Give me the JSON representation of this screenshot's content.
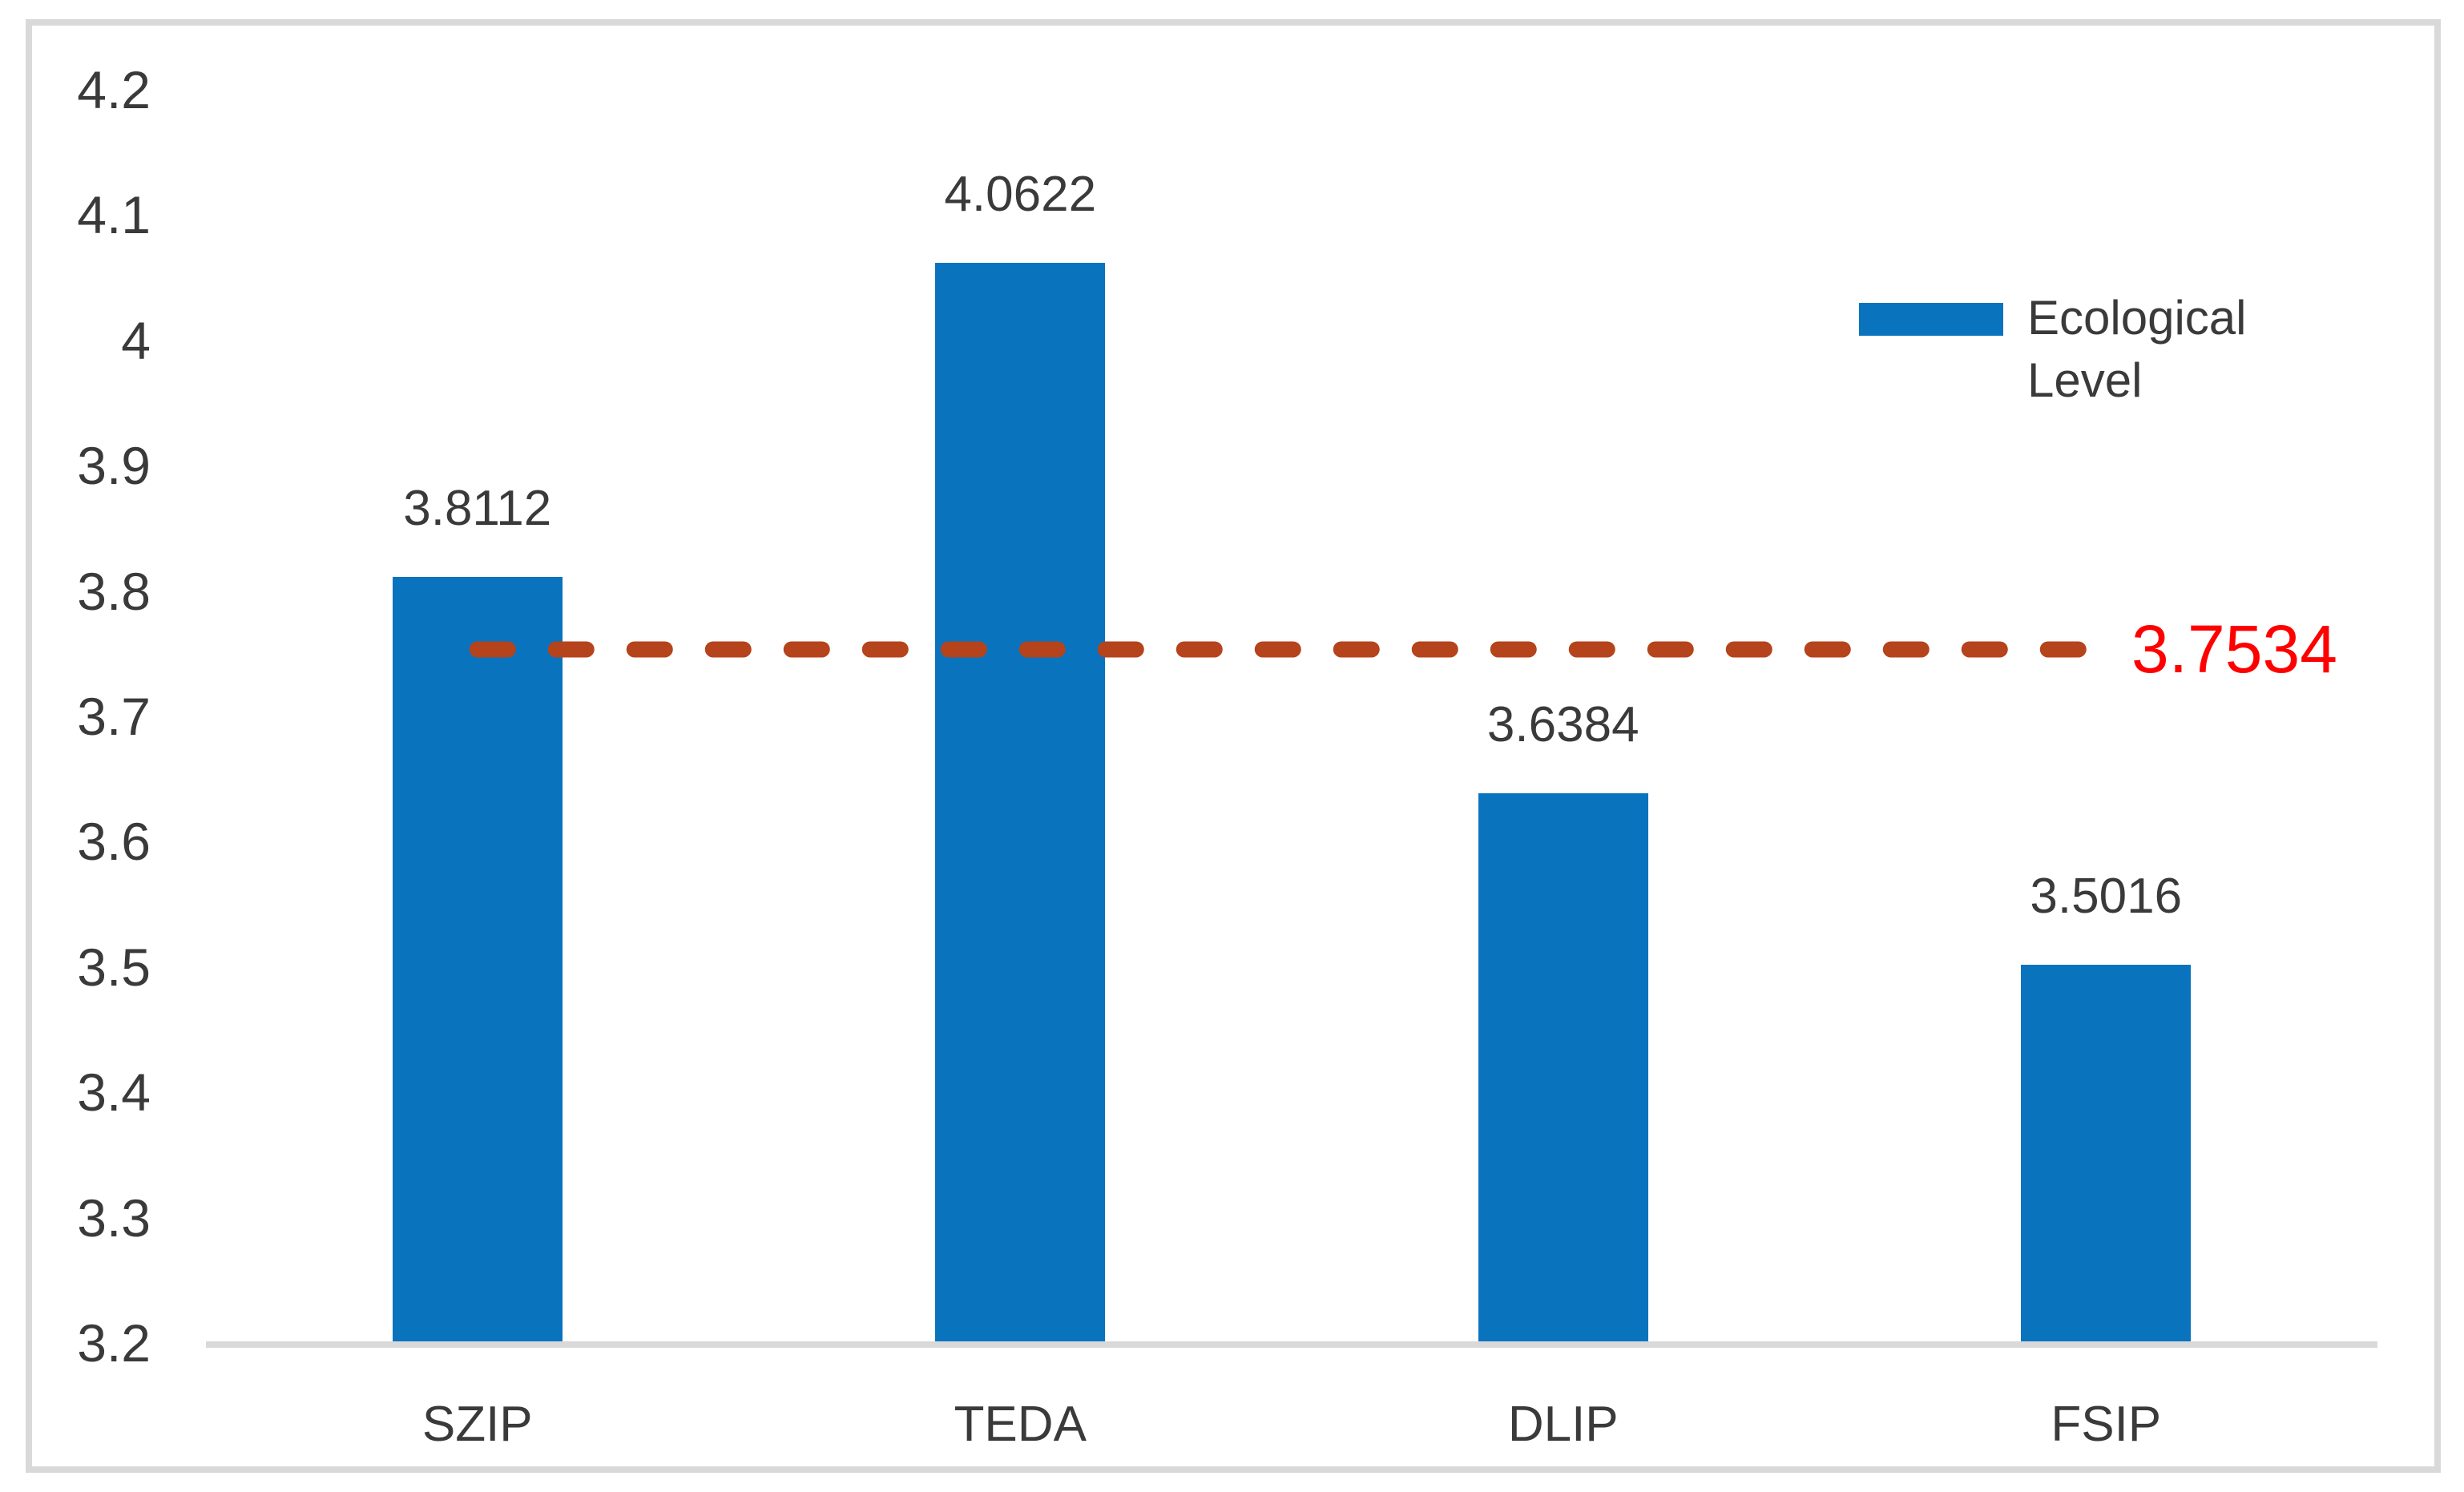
{
  "chart_data": {
    "type": "bar",
    "categories": [
      "SZIP",
      "TEDA",
      "DLIP",
      "FSIP"
    ],
    "series": [
      {
        "name": "Ecological Level",
        "values": [
          3.8112,
          4.0622,
          3.6384,
          3.5016
        ]
      }
    ],
    "data_labels": [
      "3.8112",
      "4.0622",
      "3.6384",
      "3.5016"
    ],
    "yticks": [
      "4.2",
      "4.1",
      "4",
      "3.9",
      "3.8",
      "3.7",
      "3.6",
      "3.5",
      "3.4",
      "3.3",
      "3.2"
    ],
    "ylim": [
      3.2,
      4.2
    ],
    "xlabel": "",
    "ylabel": "",
    "title": "",
    "grid": false,
    "reference_line": {
      "value": 3.7534,
      "label": "3.7534",
      "style": "dashed"
    },
    "legend": {
      "label": "Ecological Level",
      "position": "right"
    },
    "colors": {
      "bar": "#0a73be",
      "reference_line": "#b5431b",
      "reference_label": "#ff0000",
      "axis_line": "#d9d9d9",
      "frame_border": "#d9d9d9",
      "text": "#3a3a3a"
    }
  }
}
